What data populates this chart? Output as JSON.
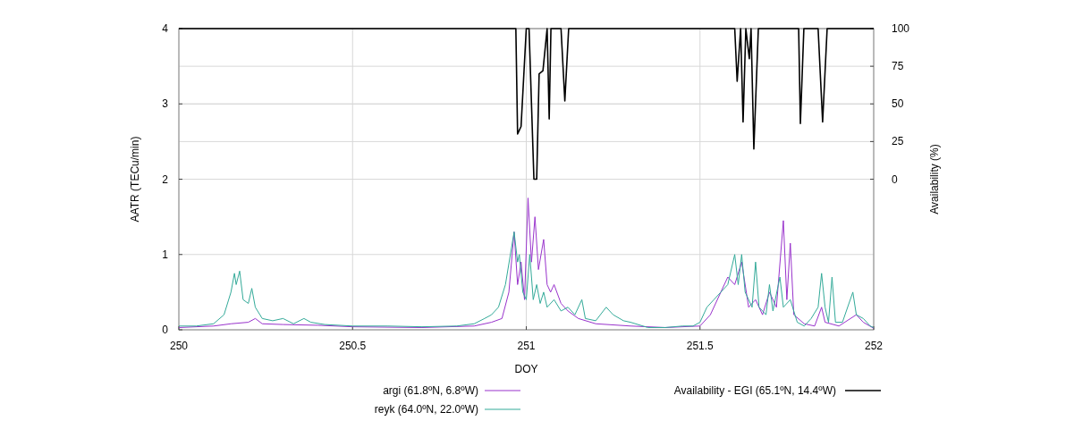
{
  "chart_data": {
    "type": "line",
    "xlabel": "DOY",
    "ylabel": "AATR (TECu/min)",
    "y2label": "Availability (%)",
    "xlim": [
      250,
      252
    ],
    "xticks": [
      250,
      250.5,
      251,
      251.5,
      252
    ],
    "ylim": [
      0,
      4
    ],
    "yticks": [
      0,
      1,
      2,
      3,
      4
    ],
    "y2lim": [
      -100,
      100
    ],
    "y2ticks": [
      0,
      25,
      50,
      75,
      100
    ],
    "grid": true,
    "legend": "bottom",
    "line_style": "solid",
    "marker": "none",
    "series": [
      {
        "name": "argi (61.8ºN, 6.8ºW)",
        "color": "#9933cc",
        "x": [
          250,
          250.1,
          250.15,
          250.2,
          250.22,
          250.24,
          250.3,
          250.4,
          250.5,
          250.7,
          250.85,
          250.9,
          250.93,
          250.95,
          250.965,
          250.975,
          250.985,
          250.995,
          251.005,
          251.015,
          251.025,
          251.035,
          251.05,
          251.06,
          251.07,
          251.08,
          251.1,
          251.12,
          251.15,
          251.2,
          251.3,
          251.4,
          251.5,
          251.53,
          251.56,
          251.58,
          251.6,
          251.62,
          251.64,
          251.66,
          251.68,
          251.7,
          251.72,
          251.74,
          251.75,
          251.76,
          251.77,
          251.8,
          251.83,
          251.85,
          251.86,
          251.9,
          251.95,
          251.97,
          252
        ],
        "values": [
          0.03,
          0.05,
          0.08,
          0.1,
          0.15,
          0.08,
          0.07,
          0.06,
          0.04,
          0.03,
          0.05,
          0.1,
          0.15,
          0.5,
          1.3,
          0.6,
          0.9,
          0.4,
          1.75,
          0.9,
          1.5,
          0.8,
          1.2,
          0.6,
          0.5,
          0.6,
          0.35,
          0.25,
          0.15,
          0.08,
          0.05,
          0.03,
          0.05,
          0.2,
          0.5,
          0.7,
          0.6,
          0.9,
          0.3,
          0.4,
          0.2,
          0.5,
          0.3,
          1.45,
          0.4,
          1.15,
          0.2,
          0.08,
          0.05,
          0.3,
          0.1,
          0.05,
          0.2,
          0.1,
          0.02
        ]
      },
      {
        "name": "reyk (64.0ºN, 22.0ºW)",
        "color": "#33aa99",
        "x": [
          250,
          250.05,
          250.1,
          250.13,
          250.15,
          250.16,
          250.165,
          250.175,
          250.185,
          250.2,
          250.21,
          250.22,
          250.24,
          250.27,
          250.3,
          250.33,
          250.36,
          250.38,
          250.42,
          250.5,
          250.6,
          250.7,
          250.8,
          250.85,
          250.88,
          250.9,
          250.92,
          250.94,
          250.965,
          250.975,
          250.98,
          250.99,
          251,
          251.01,
          251.02,
          251.03,
          251.04,
          251.05,
          251.06,
          251.08,
          251.1,
          251.12,
          251.14,
          251.16,
          251.17,
          251.2,
          251.23,
          251.25,
          251.28,
          251.3,
          251.35,
          251.4,
          251.45,
          251.48,
          251.5,
          251.52,
          251.54,
          251.56,
          251.58,
          251.6,
          251.61,
          251.62,
          251.63,
          251.65,
          251.66,
          251.67,
          251.69,
          251.7,
          251.71,
          251.73,
          251.74,
          251.76,
          251.78,
          251.8,
          251.82,
          251.84,
          251.85,
          251.86,
          251.87,
          251.88,
          251.89,
          251.91,
          251.94,
          251.95,
          251.97,
          251.99,
          252
        ],
        "values": [
          0.05,
          0.05,
          0.08,
          0.2,
          0.5,
          0.75,
          0.6,
          0.78,
          0.4,
          0.35,
          0.55,
          0.3,
          0.15,
          0.12,
          0.15,
          0.08,
          0.15,
          0.1,
          0.07,
          0.05,
          0.05,
          0.04,
          0.05,
          0.08,
          0.15,
          0.2,
          0.3,
          0.6,
          1.3,
          0.9,
          1.0,
          0.5,
          0.4,
          1.0,
          0.4,
          0.6,
          0.35,
          0.5,
          0.3,
          0.4,
          0.25,
          0.3,
          0.2,
          0.4,
          0.15,
          0.12,
          0.3,
          0.2,
          0.12,
          0.1,
          0.03,
          0.03,
          0.05,
          0.05,
          0.1,
          0.3,
          0.4,
          0.5,
          0.6,
          1.0,
          0.6,
          1.0,
          0.5,
          0.3,
          0.9,
          0.3,
          0.2,
          0.6,
          0.25,
          0.7,
          0.3,
          0.4,
          0.1,
          0.05,
          0.15,
          0.3,
          0.75,
          0.3,
          0.1,
          0.7,
          0.1,
          0.1,
          0.5,
          0.2,
          0.15,
          0.05,
          0.03
        ]
      },
      {
        "name": "Availability - EGI (65.1ºN, 14.4ºW)",
        "color": "#000000",
        "axis": "y2",
        "x": [
          250,
          250.97,
          250.975,
          250.985,
          251,
          251.008,
          251.022,
          251.03,
          251.037,
          251.048,
          251.06,
          251.066,
          251.071,
          251.1,
          251.111,
          251.122,
          251.6,
          251.607,
          251.617,
          251.624,
          251.632,
          251.642,
          251.647,
          251.655,
          251.668,
          251.784,
          251.789,
          251.799,
          251.84,
          251.853,
          251.866,
          252
        ],
        "values": [
          100,
          100,
          30,
          35,
          100,
          100,
          0,
          0,
          70,
          72,
          100,
          40,
          100,
          100,
          52,
          100,
          100,
          65,
          100,
          38,
          100,
          80,
          100,
          20,
          100,
          100,
          37,
          100,
          100,
          38,
          100,
          100
        ]
      }
    ]
  }
}
